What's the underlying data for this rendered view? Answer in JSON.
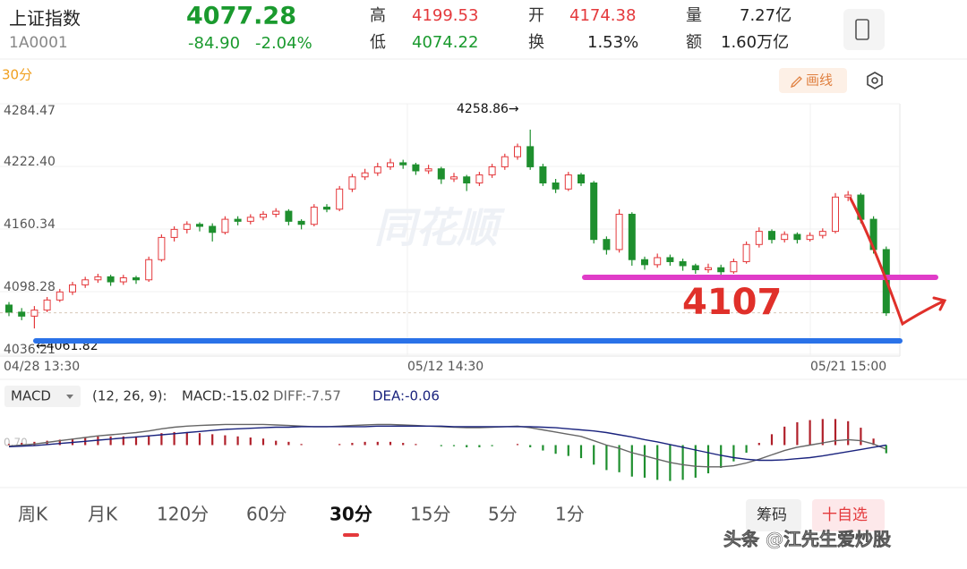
{
  "header": {
    "name": "上证指数",
    "code": "1A0001",
    "price": "4077.28",
    "change": "-84.90",
    "change_pct": "-2.04%",
    "color": "#1a9a2e"
  },
  "stats": [
    {
      "label": "高",
      "value": "4199.53",
      "color": "#e4393c"
    },
    {
      "label": "低",
      "value": "4074.22",
      "color": "#1a9a2e"
    },
    {
      "label": "开",
      "value": "4174.38",
      "color": "#e4393c"
    },
    {
      "label": "换",
      "value": "1.53%",
      "color": "#222222"
    },
    {
      "label": "量",
      "value": "7.27亿",
      "color": "#222222"
    },
    {
      "label": "额",
      "value": "1.60万亿",
      "color": "#222222"
    }
  ],
  "period": "30分",
  "draw_button": "画线",
  "watermark": "同花顺",
  "chart": {
    "type": "candlestick",
    "ylim": [
      4036.21,
      4284.47
    ],
    "yticks": [
      4284.47,
      {
        "value": 4222.4,
        "label": "4222.40"
      },
      4160.34,
      4098.28,
      4036.21
    ],
    "x_labels": [
      "04/28 13:30",
      "05/12 14:30",
      "05/21 15:00"
    ],
    "up_color": "#e4393c",
    "down_color": "#1e8f2e",
    "last_price": 4077.28,
    "high_label": "4258.86→",
    "low_label": "←4061.82",
    "annotation": "4107",
    "candles": [
      [
        4085,
        4088,
        4074,
        4078
      ],
      [
        4078,
        4082,
        4070,
        4074
      ],
      [
        4074,
        4084,
        4061.82,
        4080
      ],
      [
        4080,
        4093,
        4078,
        4090
      ],
      [
        4090,
        4101,
        4088,
        4098
      ],
      [
        4098,
        4108,
        4095,
        4105
      ],
      [
        4105,
        4113,
        4102,
        4110
      ],
      [
        4110,
        4116,
        4107,
        4113
      ],
      [
        4113,
        4115,
        4104,
        4108
      ],
      [
        4108,
        4115,
        4105,
        4112
      ],
      [
        4112,
        4114,
        4106,
        4110
      ],
      [
        4110,
        4133,
        4108,
        4130
      ],
      [
        4130,
        4155,
        4128,
        4152
      ],
      [
        4152,
        4163,
        4148,
        4160
      ],
      [
        4160,
        4168,
        4156,
        4165
      ],
      [
        4165,
        4167,
        4158,
        4163
      ],
      [
        4163,
        4166,
        4148,
        4157
      ],
      [
        4157,
        4173,
        4155,
        4170
      ],
      [
        4170,
        4173,
        4164,
        4168
      ],
      [
        4168,
        4175,
        4165,
        4172
      ],
      [
        4172,
        4178,
        4169,
        4175
      ],
      [
        4175,
        4181,
        4172,
        4178
      ],
      [
        4178,
        4180,
        4164,
        4168
      ],
      [
        4168,
        4170,
        4160,
        4165
      ],
      [
        4165,
        4185,
        4163,
        4182
      ],
      [
        4182,
        4185,
        4177,
        4180
      ],
      [
        4180,
        4203,
        4178,
        4200
      ],
      [
        4200,
        4215,
        4197,
        4212
      ],
      [
        4212,
        4220,
        4209,
        4216
      ],
      [
        4216,
        4226,
        4213,
        4222
      ],
      [
        4222,
        4230,
        4219,
        4226
      ],
      [
        4226,
        4229,
        4220,
        4224
      ],
      [
        4224,
        4226,
        4214,
        4218
      ],
      [
        4218,
        4224,
        4215,
        4220
      ],
      [
        4220,
        4222,
        4205,
        4210
      ],
      [
        4210,
        4216,
        4207,
        4212
      ],
      [
        4212,
        4214,
        4198,
        4206
      ],
      [
        4206,
        4217,
        4203,
        4214
      ],
      [
        4214,
        4225,
        4211,
        4222
      ],
      [
        4222,
        4235,
        4219,
        4232
      ],
      [
        4232,
        4245,
        4229,
        4242
      ],
      [
        4242,
        4258.86,
        4219,
        4222
      ],
      [
        4222,
        4225,
        4203,
        4206
      ],
      [
        4206,
        4210,
        4196,
        4200
      ],
      [
        4200,
        4217,
        4198,
        4214
      ],
      [
        4214,
        4216,
        4203,
        4206
      ],
      [
        4206,
        4208,
        4146,
        4150
      ],
      [
        4150,
        4153,
        4135,
        4140
      ],
      [
        4140,
        4180,
        4137,
        4175
      ],
      [
        4175,
        4177,
        4124,
        4130
      ],
      [
        4130,
        4133,
        4120,
        4125
      ],
      [
        4125,
        4136,
        4122,
        4132
      ],
      [
        4132,
        4135,
        4124,
        4128
      ],
      [
        4128,
        4131,
        4119,
        4124
      ],
      [
        4124,
        4126,
        4116,
        4120
      ],
      [
        4120,
        4126,
        4117,
        4122
      ],
      [
        4122,
        4125,
        4114,
        4118
      ],
      [
        4118,
        4131,
        4116,
        4128
      ],
      [
        4128,
        4148,
        4126,
        4145
      ],
      [
        4145,
        4162,
        4142,
        4158
      ],
      [
        4158,
        4160,
        4146,
        4150
      ],
      [
        4150,
        4158,
        4147,
        4155
      ],
      [
        4155,
        4157,
        4146,
        4150
      ],
      [
        4150,
        4157,
        4148,
        4154
      ],
      [
        4154,
        4161,
        4151,
        4158
      ],
      [
        4158,
        4196,
        4156,
        4192
      ],
      [
        4192,
        4198,
        4188,
        4194
      ],
      [
        4194,
        4196,
        4166,
        4170
      ],
      [
        4170,
        4173,
        4136,
        4140
      ],
      [
        4140,
        4143,
        4074.22,
        4077.28
      ]
    ]
  },
  "macd": {
    "label": "MACD",
    "params": "(12, 26, 9):",
    "macd": "MACD:-15.02",
    "diff": "DIFF:-7.57",
    "dea": "DEA:-0.06",
    "axis_label": "0.70",
    "ylim": [
      -70,
      70
    ],
    "up_color": "#b0202a",
    "down_color": "#1e8f2e",
    "diff_color": "#666666",
    "dea_color": "#1a237e",
    "histogram": [
      2,
      4,
      6,
      8,
      10,
      12,
      14,
      16,
      16,
      16,
      16,
      18,
      22,
      24,
      24,
      22,
      20,
      18,
      16,
      14,
      12,
      8,
      6,
      2,
      0,
      0,
      2,
      4,
      6,
      6,
      6,
      4,
      2,
      0,
      -2,
      -2,
      -4,
      -4,
      -2,
      0,
      2,
      -4,
      -10,
      -16,
      -20,
      -24,
      -36,
      -46,
      -50,
      -58,
      -60,
      -64,
      -66,
      -64,
      -60,
      -52,
      -42,
      -30,
      -14,
      4,
      20,
      34,
      42,
      46,
      48,
      48,
      44,
      32,
      12,
      -15.02
    ],
    "diff_values": [
      -2,
      0,
      2,
      5,
      8,
      11,
      14,
      17,
      19,
      21,
      23,
      26,
      30,
      33,
      35,
      36,
      37,
      38,
      38,
      38,
      38,
      37,
      36,
      35,
      34,
      34,
      35,
      36,
      37,
      38,
      38,
      37,
      36,
      35,
      34,
      33,
      32,
      32,
      33,
      34,
      35,
      32,
      28,
      24,
      20,
      16,
      8,
      0,
      -6,
      -14,
      -20,
      -26,
      -32,
      -36,
      -39,
      -40,
      -40,
      -38,
      -33,
      -26,
      -18,
      -10,
      -4,
      0,
      4,
      8,
      10,
      8,
      2,
      -7.57
    ],
    "dea_values": [
      -3,
      -2,
      -1,
      1,
      3,
      5,
      7,
      9,
      11,
      13,
      15,
      17,
      19,
      21,
      23,
      25,
      27,
      29,
      30,
      31,
      32,
      33,
      33,
      34,
      34,
      34,
      34,
      34,
      34,
      35,
      35,
      35,
      35,
      35,
      35,
      34,
      34,
      34,
      34,
      34,
      34,
      34,
      33,
      32,
      30,
      28,
      26,
      23,
      19,
      15,
      10,
      6,
      1,
      -4,
      -9,
      -14,
      -19,
      -23,
      -26,
      -28,
      -28,
      -27,
      -25,
      -23,
      -20,
      -16,
      -12,
      -8,
      -4,
      -0.06
    ]
  },
  "tabs": [
    "周K",
    "月K",
    "120分",
    "60分",
    "30分",
    "15分",
    "5分",
    "1分"
  ],
  "active_tab": 4,
  "buttons": [
    "筹码",
    "十自选"
  ],
  "footer": "头条 @江先生爱炒股"
}
